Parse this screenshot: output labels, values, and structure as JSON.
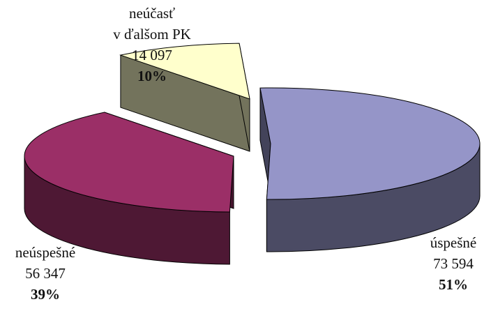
{
  "chart_data": {
    "type": "pie",
    "slices": [
      {
        "label": "úspešné",
        "value": 73594,
        "value_text": "73 594",
        "percent_text": "51%",
        "color": "#9595C8"
      },
      {
        "label": "neúspešné",
        "value": 56347,
        "value_text": "56 347",
        "percent_text": "39%",
        "color": "#9B2F67"
      },
      {
        "label_lines": [
          "neúčasť",
          "v ďalšom PK"
        ],
        "value": 14097,
        "value_text": "14 097",
        "percent_text": "10%",
        "color": "#FFFFCC"
      }
    ],
    "exploded": true,
    "three_d": true
  }
}
